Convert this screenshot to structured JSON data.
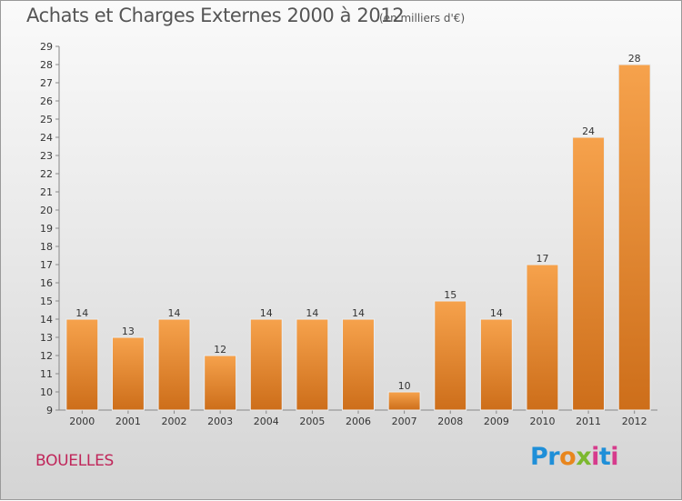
{
  "header": {
    "title": "Achats et Charges Externes 2000 à 2012",
    "subtitle": "(en milliers d'€)"
  },
  "footer": {
    "commune": "BOUELLES",
    "logo_text": "Proxiti"
  },
  "colors": {
    "bar_light": "#f6a24c",
    "bar_dark": "#cd6e1a",
    "commune": "#c0265a"
  },
  "chart_data": {
    "type": "bar",
    "title": "Achats et Charges Externes 2000 à 2012",
    "subtitle": "(en milliers d'€)",
    "categories": [
      "2000",
      "2001",
      "2002",
      "2003",
      "2004",
      "2005",
      "2006",
      "2007",
      "2008",
      "2009",
      "2010",
      "2011",
      "2012"
    ],
    "values": [
      14,
      13,
      14,
      12,
      14,
      14,
      14,
      10,
      15,
      14,
      17,
      24,
      28
    ],
    "ylim": [
      9,
      29
    ],
    "yticks": [
      9,
      10,
      11,
      12,
      13,
      14,
      15,
      16,
      17,
      18,
      19,
      20,
      21,
      22,
      23,
      24,
      25,
      26,
      27,
      28,
      29
    ],
    "grid": false,
    "xlabel": "",
    "ylabel": ""
  }
}
